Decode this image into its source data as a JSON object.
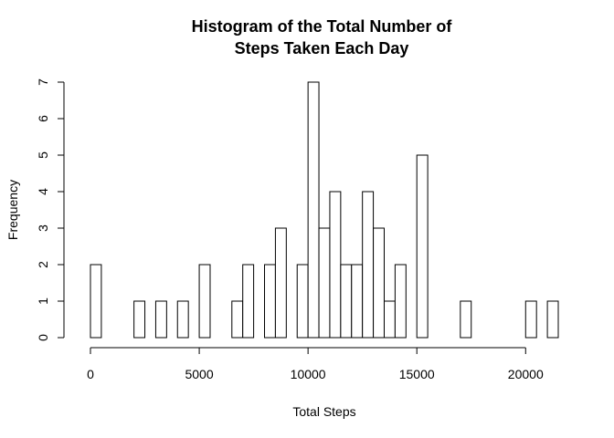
{
  "chart_data": {
    "type": "bar",
    "title_lines": [
      "Histogram of the Total Number of",
      "Steps Taken Each Day"
    ],
    "xlabel": "Total Steps",
    "ylabel": "Frequency",
    "bin_width": 500,
    "bins_start": [
      0,
      500,
      1000,
      1500,
      2000,
      2500,
      3000,
      3500,
      4000,
      4500,
      5000,
      5500,
      6000,
      6500,
      7000,
      7500,
      8000,
      8500,
      9000,
      9500,
      10000,
      10500,
      11000,
      11500,
      12000,
      12500,
      13000,
      13500,
      14000,
      14500,
      15000,
      15500,
      16000,
      16500,
      17000,
      17500,
      18000,
      18500,
      19000,
      19500,
      20000,
      20500,
      21000
    ],
    "values": [
      2,
      0,
      0,
      0,
      1,
      0,
      1,
      0,
      1,
      0,
      2,
      0,
      0,
      1,
      2,
      0,
      2,
      3,
      0,
      2,
      7,
      3,
      4,
      2,
      2,
      4,
      3,
      1,
      2,
      0,
      5,
      0,
      0,
      0,
      1,
      0,
      0,
      0,
      0,
      0,
      1,
      0,
      1
    ],
    "x_ticks": [
      0,
      5000,
      10000,
      15000,
      20000
    ],
    "x_tick_labels": [
      "0",
      "5000",
      "10000",
      "15000",
      "20000"
    ],
    "y_ticks": [
      0,
      1,
      2,
      3,
      4,
      5,
      6,
      7
    ],
    "y_tick_labels": [
      "0",
      "1",
      "2",
      "3",
      "4",
      "5",
      "6",
      "7"
    ],
    "xlim": [
      0,
      21500
    ],
    "ylim": [
      0,
      7
    ],
    "grid": false,
    "legend": "none",
    "colors": {
      "bar_fill": "#ffffff",
      "bar_stroke": "#000000"
    }
  }
}
